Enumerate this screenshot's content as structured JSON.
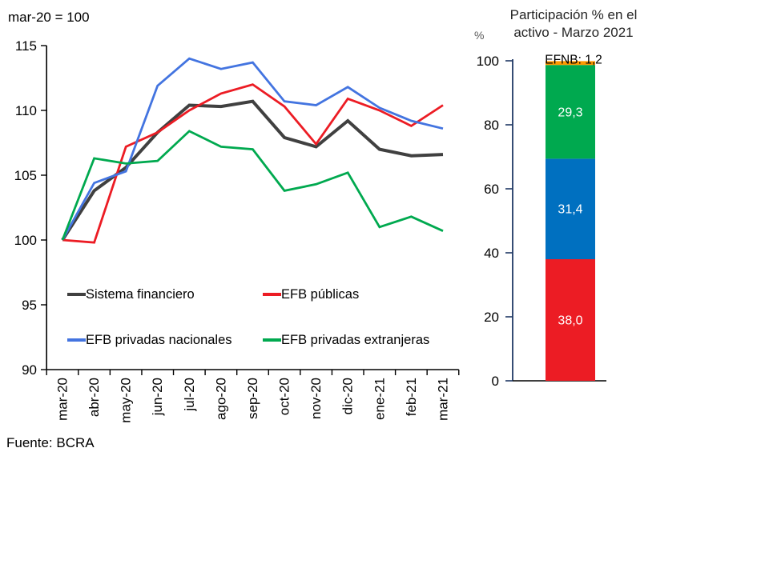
{
  "left_panel": {
    "title": "mar-20 = 100",
    "source": "Fuente: BCRA"
  },
  "right_panel": {
    "title_line1": "Participación % en el",
    "title_line2": "activo - Marzo 2021",
    "ylabel": "%"
  },
  "chart_data": [
    {
      "type": "line",
      "title": "mar-20 = 100",
      "source": "Fuente: BCRA",
      "x": [
        "mar-20",
        "abr-20",
        "may-20",
        "jun-20",
        "jul-20",
        "ago-20",
        "sep-20",
        "oct-20",
        "nov-20",
        "dic-20",
        "ene-21",
        "feb-21",
        "mar-21"
      ],
      "ylim": [
        90,
        115
      ],
      "y_ticks": [
        115,
        110,
        105,
        100,
        95,
        90
      ],
      "grid": false,
      "legend_position": "inside-bottom-left",
      "series": [
        {
          "name": "Sistema financiero",
          "color": "#404040",
          "width": 4,
          "values": [
            100,
            103.8,
            105.6,
            108.3,
            110.4,
            110.3,
            110.7,
            107.9,
            107.2,
            109.2,
            107.0,
            106.5,
            106.6
          ]
        },
        {
          "name": "EFB públicas",
          "color": "#ec1c24",
          "width": 2.8,
          "values": [
            100,
            99.8,
            107.2,
            108.3,
            110.0,
            111.3,
            112.0,
            110.3,
            107.4,
            110.9,
            110.0,
            108.8,
            110.4
          ]
        },
        {
          "name": "EFB privadas nacionales",
          "color": "#4374e0",
          "width": 2.8,
          "values": [
            100,
            104.4,
            105.3,
            111.9,
            114.0,
            113.2,
            113.7,
            110.7,
            110.4,
            111.8,
            110.2,
            109.2,
            108.6
          ]
        },
        {
          "name": "EFB privadas extranjeras",
          "color": "#00a94f",
          "width": 2.8,
          "values": [
            100,
            106.3,
            105.9,
            106.1,
            108.4,
            107.2,
            107.0,
            103.8,
            104.3,
            105.2,
            101.0,
            101.8,
            100.7
          ]
        }
      ]
    },
    {
      "type": "bar",
      "stacked": true,
      "title": "Participación % en el activo - Marzo 2021",
      "ylabel": "%",
      "ylim": [
        0,
        100
      ],
      "y_ticks": [
        0,
        20,
        40,
        60,
        80,
        100
      ],
      "axis_color": "#1f3864",
      "categories": [
        "Marzo 2021"
      ],
      "segments": [
        {
          "name": "EFB públicas",
          "value": 38.0,
          "label": "38,0",
          "color": "#ec1c24",
          "label_color": "#ffffff",
          "label_outside": false
        },
        {
          "name": "EFB privadas nacionales",
          "value": 31.4,
          "label": "31,4",
          "color": "#0070c0",
          "label_color": "#ffffff",
          "label_outside": false
        },
        {
          "name": "EFB privadas extranjeras",
          "value": 29.3,
          "label": "29,3",
          "color": "#00a94f",
          "label_color": "#ffffff",
          "label_outside": false
        },
        {
          "name": "EFNB",
          "value": 1.2,
          "label": "EFNB: 1,2",
          "color": "#ff9900",
          "label_color": "#000000",
          "label_outside": true
        }
      ]
    }
  ]
}
